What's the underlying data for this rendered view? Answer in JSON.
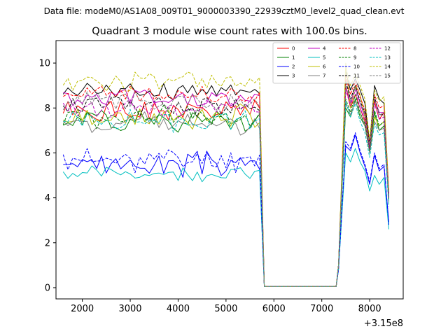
{
  "figure": {
    "suptitle": "Data file: modeM0/AS1A08_009T01_9000003390_22939cztM0_level2_quad_clean.evt",
    "title": "Quadrant 3 module wise count rates with 100.0s bins.",
    "x_offset_label": "+3.15e8"
  },
  "chart_data": {
    "type": "line",
    "title": "Quadrant 3 module wise count rates with 100.0s bins.",
    "xlabel": "",
    "ylabel": "",
    "x_offset": 315000000,
    "xlim": [
      1450,
      8700
    ],
    "ylim": [
      -0.5,
      11
    ],
    "xticks": [
      2000,
      3000,
      4000,
      5000,
      6000,
      7000,
      8000
    ],
    "xtick_labels": [
      "2000",
      "3000",
      "4000",
      "5000",
      "6000",
      "7000",
      "8000"
    ],
    "yticks": [
      0,
      2,
      4,
      6,
      8,
      10
    ],
    "ytick_labels": [
      "0",
      "2",
      "4",
      "6",
      "8",
      "10"
    ],
    "legend_location": "top-right",
    "segment_a": {
      "x_start": 1600,
      "step": 100,
      "count": 42
    },
    "gap": {
      "x": [
        5800,
        7300
      ],
      "value": 0.05
    },
    "segment_b": {
      "x": [
        7350,
        7500,
        7600,
        7700,
        7800,
        7900,
        8000,
        8100,
        8200,
        8300,
        8400
      ]
    },
    "series": [
      {
        "name": "0",
        "color": "#ff0000",
        "dashed": false,
        "mean": 7.8,
        "amp": 0.4,
        "seed": 1,
        "b": [
          1.0,
          9.0,
          8.0,
          8.6,
          8.0,
          7.4,
          6.2,
          8.3,
          7.5,
          7.8,
          4.0
        ]
      },
      {
        "name": "1",
        "color": "#008000",
        "dashed": false,
        "mean": 7.5,
        "amp": 0.4,
        "seed": 2,
        "b": [
          1.0,
          8.0,
          7.6,
          8.4,
          7.6,
          7.2,
          6.1,
          7.8,
          7.0,
          7.2,
          4.0
        ]
      },
      {
        "name": "2",
        "color": "#0000ff",
        "dashed": false,
        "mean": 5.5,
        "amp": 0.4,
        "seed": 3,
        "b": [
          0.8,
          6.3,
          6.1,
          6.8,
          6.0,
          5.4,
          4.6,
          5.9,
          5.2,
          5.4,
          2.9
        ]
      },
      {
        "name": "3",
        "color": "#000000",
        "dashed": false,
        "mean": 8.8,
        "amp": 0.3,
        "seed": 4,
        "b": [
          1.0,
          9.6,
          8.8,
          9.3,
          8.8,
          8.2,
          6.4,
          9.0,
          8.4,
          8.2,
          4.2
        ]
      },
      {
        "name": "4",
        "color": "#c000c0",
        "dashed": false,
        "mean": 8.4,
        "amp": 0.35,
        "seed": 5,
        "b": [
          1.0,
          9.0,
          8.2,
          9.0,
          8.2,
          7.6,
          6.3,
          8.4,
          7.8,
          7.8,
          4.1
        ]
      },
      {
        "name": "5",
        "color": "#00bfbf",
        "dashed": false,
        "mean": 5.1,
        "amp": 0.25,
        "seed": 6,
        "b": [
          0.8,
          6.0,
          5.6,
          6.2,
          5.6,
          5.2,
          4.3,
          5.0,
          4.6,
          4.9,
          2.6
        ]
      },
      {
        "name": "6",
        "color": "#bfbf00",
        "dashed": false,
        "mean": 7.6,
        "amp": 0.4,
        "seed": 7,
        "b": [
          1.0,
          10.0,
          8.0,
          9.0,
          8.6,
          7.6,
          6.0,
          7.6,
          7.2,
          7.4,
          4.0
        ]
      },
      {
        "name": "7",
        "color": "#808080",
        "dashed": false,
        "mean": 7.3,
        "amp": 0.4,
        "seed": 8,
        "b": [
          1.0,
          8.2,
          7.7,
          8.3,
          7.8,
          7.2,
          6.0,
          7.4,
          7.0,
          7.1,
          3.8
        ]
      },
      {
        "name": "8",
        "color": "#ff0000",
        "dashed": true,
        "mean": 8.6,
        "amp": 0.3,
        "seed": 9,
        "b": [
          1.0,
          9.4,
          8.6,
          9.2,
          8.5,
          7.9,
          6.3,
          8.6,
          8.0,
          8.1,
          4.2
        ]
      },
      {
        "name": "9",
        "color": "#008000",
        "dashed": true,
        "mean": 7.6,
        "amp": 0.4,
        "seed": 10,
        "b": [
          1.0,
          8.4,
          7.8,
          8.6,
          7.8,
          7.3,
          6.1,
          7.9,
          7.2,
          7.4,
          3.9
        ]
      },
      {
        "name": "10",
        "color": "#0000ff",
        "dashed": true,
        "mean": 5.7,
        "amp": 0.4,
        "seed": 11,
        "b": [
          0.8,
          6.5,
          6.2,
          6.9,
          6.1,
          5.5,
          4.7,
          6.0,
          5.3,
          5.5,
          2.8
        ]
      },
      {
        "name": "11",
        "color": "#000000",
        "dashed": true,
        "mean": 8.1,
        "amp": 0.35,
        "seed": 12,
        "b": [
          1.0,
          9.2,
          8.4,
          9.0,
          8.3,
          7.8,
          6.2,
          8.5,
          7.7,
          7.7,
          4.0
        ]
      },
      {
        "name": "12",
        "color": "#c000c0",
        "dashed": true,
        "mean": 8.0,
        "amp": 0.35,
        "seed": 13,
        "b": [
          1.0,
          8.8,
          8.1,
          8.8,
          8.0,
          7.5,
          6.2,
          8.2,
          7.5,
          7.6,
          4.0
        ]
      },
      {
        "name": "13",
        "color": "#00bfbf",
        "dashed": true,
        "mean": 7.4,
        "amp": 0.35,
        "seed": 14,
        "b": [
          1.0,
          8.3,
          7.6,
          8.2,
          7.4,
          6.9,
          5.8,
          7.3,
          6.8,
          6.9,
          3.6
        ]
      },
      {
        "name": "14",
        "color": "#bfbf00",
        "dashed": true,
        "mean": 9.2,
        "amp": 0.35,
        "seed": 15,
        "b": [
          1.0,
          9.8,
          9.0,
          9.5,
          9.0,
          8.4,
          6.6,
          8.8,
          8.3,
          8.5,
          4.3
        ]
      },
      {
        "name": "15",
        "color": "#808080",
        "dashed": true,
        "mean": 8.3,
        "amp": 0.35,
        "seed": 16,
        "b": [
          1.0,
          9.0,
          8.3,
          8.9,
          8.2,
          7.7,
          6.3,
          8.4,
          7.7,
          7.8,
          4.0
        ]
      }
    ]
  }
}
